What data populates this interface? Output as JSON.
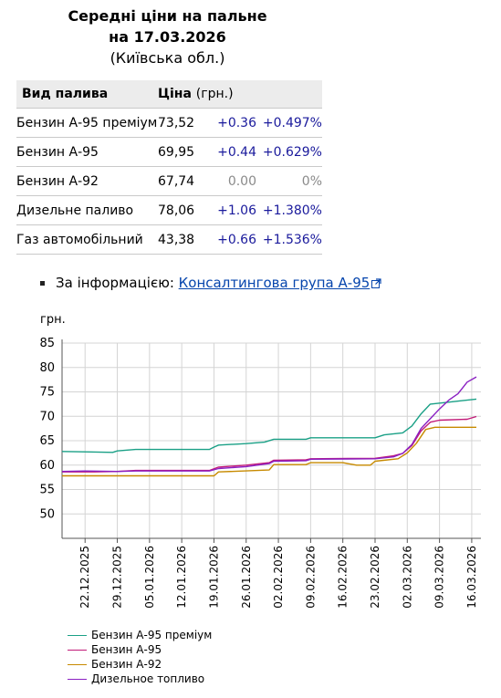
{
  "header": {
    "line1": "Середні ціни на пальне",
    "line2": "на 17.03.2026",
    "line3": "(Київська обл.)"
  },
  "table": {
    "col_type": "Вид палива",
    "col_price": "Ціна",
    "col_unit": "(грн.)",
    "rows": [
      {
        "name": "Бензин А-95 преміум",
        "price": "73,52",
        "delta": "+0.36",
        "pct": "+0.497%"
      },
      {
        "name": "Бензин А-95",
        "price": "69,95",
        "delta": "+0.44",
        "pct": "+0.629%"
      },
      {
        "name": "Бензин А-92",
        "price": "67,74",
        "delta": "0.00",
        "pct": "0%"
      },
      {
        "name": "Дизельне паливо",
        "price": "78,06",
        "delta": "+1.06",
        "pct": "+1.380%"
      },
      {
        "name": "Газ автомобільний",
        "price": "43,38",
        "delta": "+0.66",
        "pct": "+1.536%"
      }
    ]
  },
  "info": {
    "prefix": "За інформацією:",
    "link": "Консалтингова група А-95"
  },
  "chart_data": {
    "type": "line",
    "ylabel": "грн.",
    "ylim": [
      45,
      85
    ],
    "yticks": [
      50,
      55,
      60,
      65,
      70,
      75,
      80,
      85
    ],
    "xlim": [
      "2025-12-17",
      "2026-03-18"
    ],
    "xticks": [
      "22.12.2025",
      "29.12.2025",
      "05.01.2026",
      "12.01.2026",
      "19.01.2026",
      "26.01.2026",
      "02.02.2026",
      "09.02.2026",
      "16.02.2026",
      "23.02.2026",
      "02.03.2026",
      "09.03.2026",
      "16.03.2026"
    ],
    "grid": true,
    "legend_position": "bottom",
    "series": [
      {
        "name": "Бензин А-95 преміум",
        "color": "#1aa086",
        "points": [
          [
            "2025-12-17",
            62.8
          ],
          [
            "2025-12-23",
            62.7
          ],
          [
            "2025-12-28",
            62.6
          ],
          [
            "2025-12-29",
            62.9
          ],
          [
            "2026-01-02",
            63.2
          ],
          [
            "2026-01-18",
            63.2
          ],
          [
            "2026-01-19",
            63.7
          ],
          [
            "2026-01-20",
            64.1
          ],
          [
            "2026-01-26",
            64.4
          ],
          [
            "2026-01-30",
            64.7
          ],
          [
            "2026-02-01",
            65.3
          ],
          [
            "2026-02-08",
            65.3
          ],
          [
            "2026-02-09",
            65.6
          ],
          [
            "2026-02-23",
            65.6
          ],
          [
            "2026-02-25",
            66.2
          ],
          [
            "2026-03-01",
            66.6
          ],
          [
            "2026-03-03",
            68.0
          ],
          [
            "2026-03-05",
            70.5
          ],
          [
            "2026-03-07",
            72.5
          ],
          [
            "2026-03-10",
            72.8
          ],
          [
            "2026-03-14",
            73.2
          ],
          [
            "2026-03-17",
            73.52
          ]
        ]
      },
      {
        "name": "Бензин А-95",
        "color": "#c21a78",
        "points": [
          [
            "2025-12-17",
            58.6
          ],
          [
            "2025-12-24",
            58.6
          ],
          [
            "2025-12-29",
            58.7
          ],
          [
            "2026-01-02",
            58.9
          ],
          [
            "2026-01-18",
            58.9
          ],
          [
            "2026-01-20",
            59.6
          ],
          [
            "2026-01-26",
            60.0
          ],
          [
            "2026-01-31",
            60.5
          ],
          [
            "2026-02-01",
            61.0
          ],
          [
            "2026-02-08",
            61.1
          ],
          [
            "2026-02-09",
            61.3
          ],
          [
            "2026-02-23",
            61.4
          ],
          [
            "2026-02-27",
            61.9
          ],
          [
            "2026-03-01",
            62.4
          ],
          [
            "2026-03-03",
            64.0
          ],
          [
            "2026-03-05",
            67.0
          ],
          [
            "2026-03-07",
            68.8
          ],
          [
            "2026-03-09",
            69.2
          ],
          [
            "2026-03-15",
            69.4
          ],
          [
            "2026-03-17",
            69.95
          ]
        ]
      },
      {
        "name": "Бензин А-92",
        "color": "#c78a00",
        "points": [
          [
            "2025-12-17",
            57.8
          ],
          [
            "2026-01-19",
            57.8
          ],
          [
            "2026-01-20",
            58.6
          ],
          [
            "2026-01-31",
            59.0
          ],
          [
            "2026-02-01",
            60.1
          ],
          [
            "2026-02-08",
            60.1
          ],
          [
            "2026-02-09",
            60.5
          ],
          [
            "2026-02-16",
            60.5
          ],
          [
            "2026-02-19",
            60.0
          ],
          [
            "2026-02-22",
            60.0
          ],
          [
            "2026-02-23",
            60.8
          ],
          [
            "2026-02-28",
            61.3
          ],
          [
            "2026-03-02",
            62.5
          ],
          [
            "2026-03-04",
            64.5
          ],
          [
            "2026-03-06",
            67.3
          ],
          [
            "2026-03-08",
            67.74
          ],
          [
            "2026-03-17",
            67.74
          ]
        ]
      },
      {
        "name": "Дизельное топливо",
        "color": "#8a1fc2",
        "points": [
          [
            "2025-12-17",
            58.7
          ],
          [
            "2025-12-22",
            58.8
          ],
          [
            "2025-12-29",
            58.7
          ],
          [
            "2026-01-02",
            58.8
          ],
          [
            "2026-01-18",
            58.8
          ],
          [
            "2026-01-20",
            59.3
          ],
          [
            "2026-01-26",
            59.7
          ],
          [
            "2026-01-31",
            60.3
          ],
          [
            "2026-02-01",
            60.8
          ],
          [
            "2026-02-08",
            60.9
          ],
          [
            "2026-02-09",
            61.2
          ],
          [
            "2026-02-23",
            61.3
          ],
          [
            "2026-02-27",
            61.7
          ],
          [
            "2026-03-01",
            62.4
          ],
          [
            "2026-03-03",
            64.2
          ],
          [
            "2026-03-05",
            67.5
          ],
          [
            "2026-03-07",
            69.5
          ],
          [
            "2026-03-09",
            71.5
          ],
          [
            "2026-03-11",
            73.3
          ],
          [
            "2026-03-13",
            74.6
          ],
          [
            "2026-03-15",
            77.0
          ],
          [
            "2026-03-17",
            78.06
          ]
        ]
      }
    ]
  }
}
